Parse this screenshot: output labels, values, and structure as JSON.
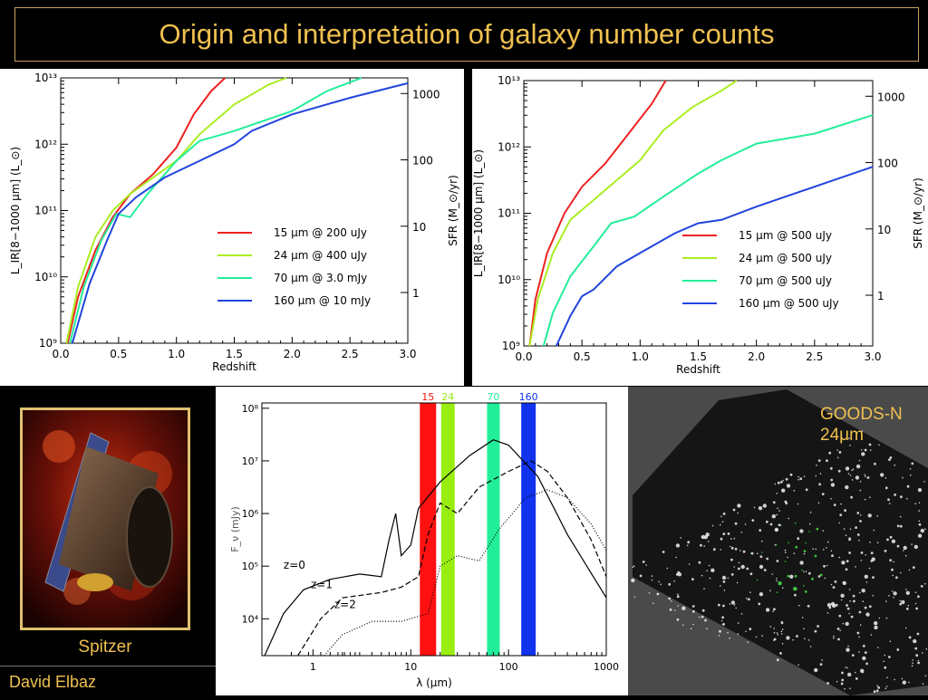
{
  "slide": {
    "title": "Origin and interpretation of galaxy number counts",
    "caption": "Spitzer",
    "author": "David Elbaz",
    "image_label_line1": "GOODS-N",
    "image_label_line2": "24μm"
  },
  "colors": {
    "title": "#f0c050",
    "red": "#ee2222",
    "yellowgreen": "#aaee22",
    "cyan": "#22ee99",
    "blue": "#2244dd"
  },
  "chart_data": [
    {
      "type": "line",
      "xlabel": "Redshift",
      "ylabel": "L_IR[8−1000 μm] (L_⊙)",
      "ylabel_right": "SFR (M_⊙/yr)",
      "xlim": [
        0,
        3
      ],
      "ylim_log": [
        9,
        13
      ],
      "x_ticks": [
        "0.0",
        "0.5",
        "1.0",
        "1.5",
        "2.0",
        "2.5",
        "3.0"
      ],
      "y_ticks": [
        "10⁹",
        "10¹⁰",
        "10¹¹",
        "10¹²",
        "10¹³"
      ],
      "y_right_ticks": [
        "1",
        "10",
        "100",
        "1000"
      ],
      "series": [
        {
          "name": "15 μm @ 200 uJy",
          "color": "#ee2222",
          "points": [
            [
              0.06,
              9
            ],
            [
              0.15,
              9.7
            ],
            [
              0.3,
              10.4
            ],
            [
              0.45,
              10.9
            ],
            [
              0.6,
              11.25
            ],
            [
              0.8,
              11.55
            ],
            [
              1.0,
              11.95
            ],
            [
              1.15,
              12.45
            ],
            [
              1.3,
              12.8
            ],
            [
              1.42,
              13
            ]
          ]
        },
        {
          "name": "24 μm @ 400 uJy",
          "color": "#aaee22",
          "points": [
            [
              0.05,
              9
            ],
            [
              0.15,
              9.85
            ],
            [
              0.3,
              10.6
            ],
            [
              0.45,
              11.0
            ],
            [
              0.6,
              11.25
            ],
            [
              0.8,
              11.5
            ],
            [
              1.0,
              11.75
            ],
            [
              1.2,
              12.15
            ],
            [
              1.5,
              12.6
            ],
            [
              1.8,
              12.9
            ],
            [
              1.95,
              13
            ]
          ]
        },
        {
          "name": "70 μm @ 3.0 mJy",
          "color": "#22ee99",
          "points": [
            [
              0.08,
              9
            ],
            [
              0.2,
              9.85
            ],
            [
              0.35,
              10.55
            ],
            [
              0.48,
              10.95
            ],
            [
              0.6,
              10.9
            ],
            [
              0.75,
              11.25
            ],
            [
              1.0,
              11.75
            ],
            [
              1.2,
              12.05
            ],
            [
              1.5,
              12.2
            ],
            [
              2.0,
              12.5
            ],
            [
              2.3,
              12.8
            ],
            [
              2.6,
              13
            ]
          ]
        },
        {
          "name": "160 μm @ 10 mJy",
          "color": "#2244dd",
          "points": [
            [
              0.1,
              9
            ],
            [
              0.25,
              9.9
            ],
            [
              0.4,
              10.55
            ],
            [
              0.5,
              10.95
            ],
            [
              0.65,
              11.2
            ],
            [
              0.9,
              11.5
            ],
            [
              1.2,
              11.75
            ],
            [
              1.5,
              12.0
            ],
            [
              1.65,
              12.2
            ],
            [
              2.0,
              12.45
            ],
            [
              2.5,
              12.7
            ],
            [
              3.0,
              12.92
            ]
          ]
        }
      ]
    },
    {
      "type": "line",
      "xlabel": "Redshift",
      "ylabel": "L_IR[8−1000 μm] (L_⊙)",
      "ylabel_right": "SFR (M_⊙/yr)",
      "xlim": [
        0,
        3
      ],
      "ylim_log": [
        9,
        13
      ],
      "x_ticks": [
        "0.0",
        "0.5",
        "1.0",
        "1.5",
        "2.0",
        "2.5",
        "3.0"
      ],
      "y_ticks": [
        "10⁹",
        "10¹⁰",
        "10¹¹",
        "10¹²",
        "10¹³"
      ],
      "y_right_ticks": [
        "1",
        "10",
        "100",
        "1000"
      ],
      "series": [
        {
          "name": "15 μm @ 500 uJy",
          "color": "#ee2222",
          "points": [
            [
              0.05,
              9
            ],
            [
              0.1,
              9.7
            ],
            [
              0.2,
              10.4
            ],
            [
              0.35,
              11.0
            ],
            [
              0.5,
              11.4
            ],
            [
              0.7,
              11.75
            ],
            [
              0.9,
              12.2
            ],
            [
              1.1,
              12.65
            ],
            [
              1.22,
              13
            ]
          ]
        },
        {
          "name": "24 μm @ 500 uJy",
          "color": "#aaee22",
          "points": [
            [
              0.05,
              9
            ],
            [
              0.12,
              9.7
            ],
            [
              0.25,
              10.4
            ],
            [
              0.4,
              10.9
            ],
            [
              0.6,
              11.2
            ],
            [
              0.8,
              11.5
            ],
            [
              1.0,
              11.8
            ],
            [
              1.2,
              12.25
            ],
            [
              1.45,
              12.6
            ],
            [
              1.7,
              12.85
            ],
            [
              1.83,
              13
            ]
          ]
        },
        {
          "name": "70 μm @ 500 uJy",
          "color": "#22ee99",
          "points": [
            [
              0.17,
              9
            ],
            [
              0.25,
              9.5
            ],
            [
              0.4,
              10.05
            ],
            [
              0.6,
              10.5
            ],
            [
              0.75,
              10.85
            ],
            [
              0.95,
              10.95
            ],
            [
              1.2,
              11.25
            ],
            [
              1.5,
              11.6
            ],
            [
              1.7,
              11.8
            ],
            [
              2.0,
              12.05
            ],
            [
              2.5,
              12.2
            ],
            [
              3.0,
              12.48
            ]
          ]
        },
        {
          "name": "160 μm @ 500 uJy",
          "color": "#2244dd",
          "points": [
            [
              0.28,
              9
            ],
            [
              0.4,
              9.45
            ],
            [
              0.5,
              9.75
            ],
            [
              0.6,
              9.85
            ],
            [
              0.8,
              10.2
            ],
            [
              1.0,
              10.4
            ],
            [
              1.3,
              10.7
            ],
            [
              1.5,
              10.85
            ],
            [
              1.7,
              10.9
            ],
            [
              2.0,
              11.1
            ],
            [
              2.5,
              11.4
            ],
            [
              3.0,
              11.7
            ]
          ]
        }
      ]
    },
    {
      "type": "line",
      "xlabel": "λ (μm)",
      "ylabel": "F_ν (mJy)",
      "xscale": "log",
      "yscale": "log",
      "xlim": [
        0.3,
        1000
      ],
      "ylim_log": [
        3.3,
        8.1
      ],
      "x_ticks": [
        "1",
        "10",
        "100",
        "1000"
      ],
      "y_ticks": [
        "10⁴",
        "10⁵",
        "10⁶",
        "10⁷",
        "10⁸"
      ],
      "bands": [
        {
          "label": "15",
          "lambda": 15,
          "color": "#ff1111"
        },
        {
          "label": "24",
          "lambda": 24,
          "color": "#99ee11"
        },
        {
          "label": "70",
          "lambda": 70,
          "color": "#22ee99"
        },
        {
          "label": "160",
          "lambda": 160,
          "color": "#1133ee"
        }
      ],
      "series": [
        {
          "name": "z=0",
          "style": "solid",
          "points": [
            [
              0.32,
              3.3
            ],
            [
              0.5,
              4.1
            ],
            [
              0.8,
              4.55
            ],
            [
              1.5,
              4.75
            ],
            [
              3,
              4.85
            ],
            [
              5,
              4.8
            ],
            [
              6,
              5.5
            ],
            [
              7,
              6.0
            ],
            [
              8,
              5.2
            ],
            [
              10,
              5.4
            ],
            [
              12,
              6.1
            ],
            [
              20,
              6.6
            ],
            [
              40,
              7.1
            ],
            [
              70,
              7.4
            ],
            [
              100,
              7.3
            ],
            [
              200,
              6.7
            ],
            [
              400,
              5.6
            ],
            [
              1000,
              4.4
            ]
          ]
        },
        {
          "name": "z=1",
          "style": "dashed",
          "points": [
            [
              0.7,
              3.3
            ],
            [
              1.2,
              4.0
            ],
            [
              2,
              4.4
            ],
            [
              5,
              4.5
            ],
            [
              8,
              4.6
            ],
            [
              12,
              4.8
            ],
            [
              15,
              5.6
            ],
            [
              20,
              6.2
            ],
            [
              30,
              6.0
            ],
            [
              50,
              6.5
            ],
            [
              100,
              6.8
            ],
            [
              170,
              7.0
            ],
            [
              250,
              6.8
            ],
            [
              400,
              6.3
            ],
            [
              700,
              5.5
            ],
            [
              1000,
              4.8
            ]
          ]
        },
        {
          "name": "z=2",
          "style": "dotted",
          "points": [
            [
              1.3,
              3.3
            ],
            [
              2,
              3.7
            ],
            [
              4,
              3.95
            ],
            [
              8,
              3.95
            ],
            [
              15,
              4.1
            ],
            [
              20,
              5.0
            ],
            [
              30,
              5.2
            ],
            [
              50,
              5.1
            ],
            [
              80,
              5.7
            ],
            [
              150,
              6.3
            ],
            [
              250,
              6.45
            ],
            [
              400,
              6.3
            ],
            [
              700,
              5.8
            ],
            [
              1000,
              5.3
            ]
          ]
        }
      ],
      "annotations": [
        "z=0",
        "z=1",
        "z=2"
      ]
    }
  ]
}
